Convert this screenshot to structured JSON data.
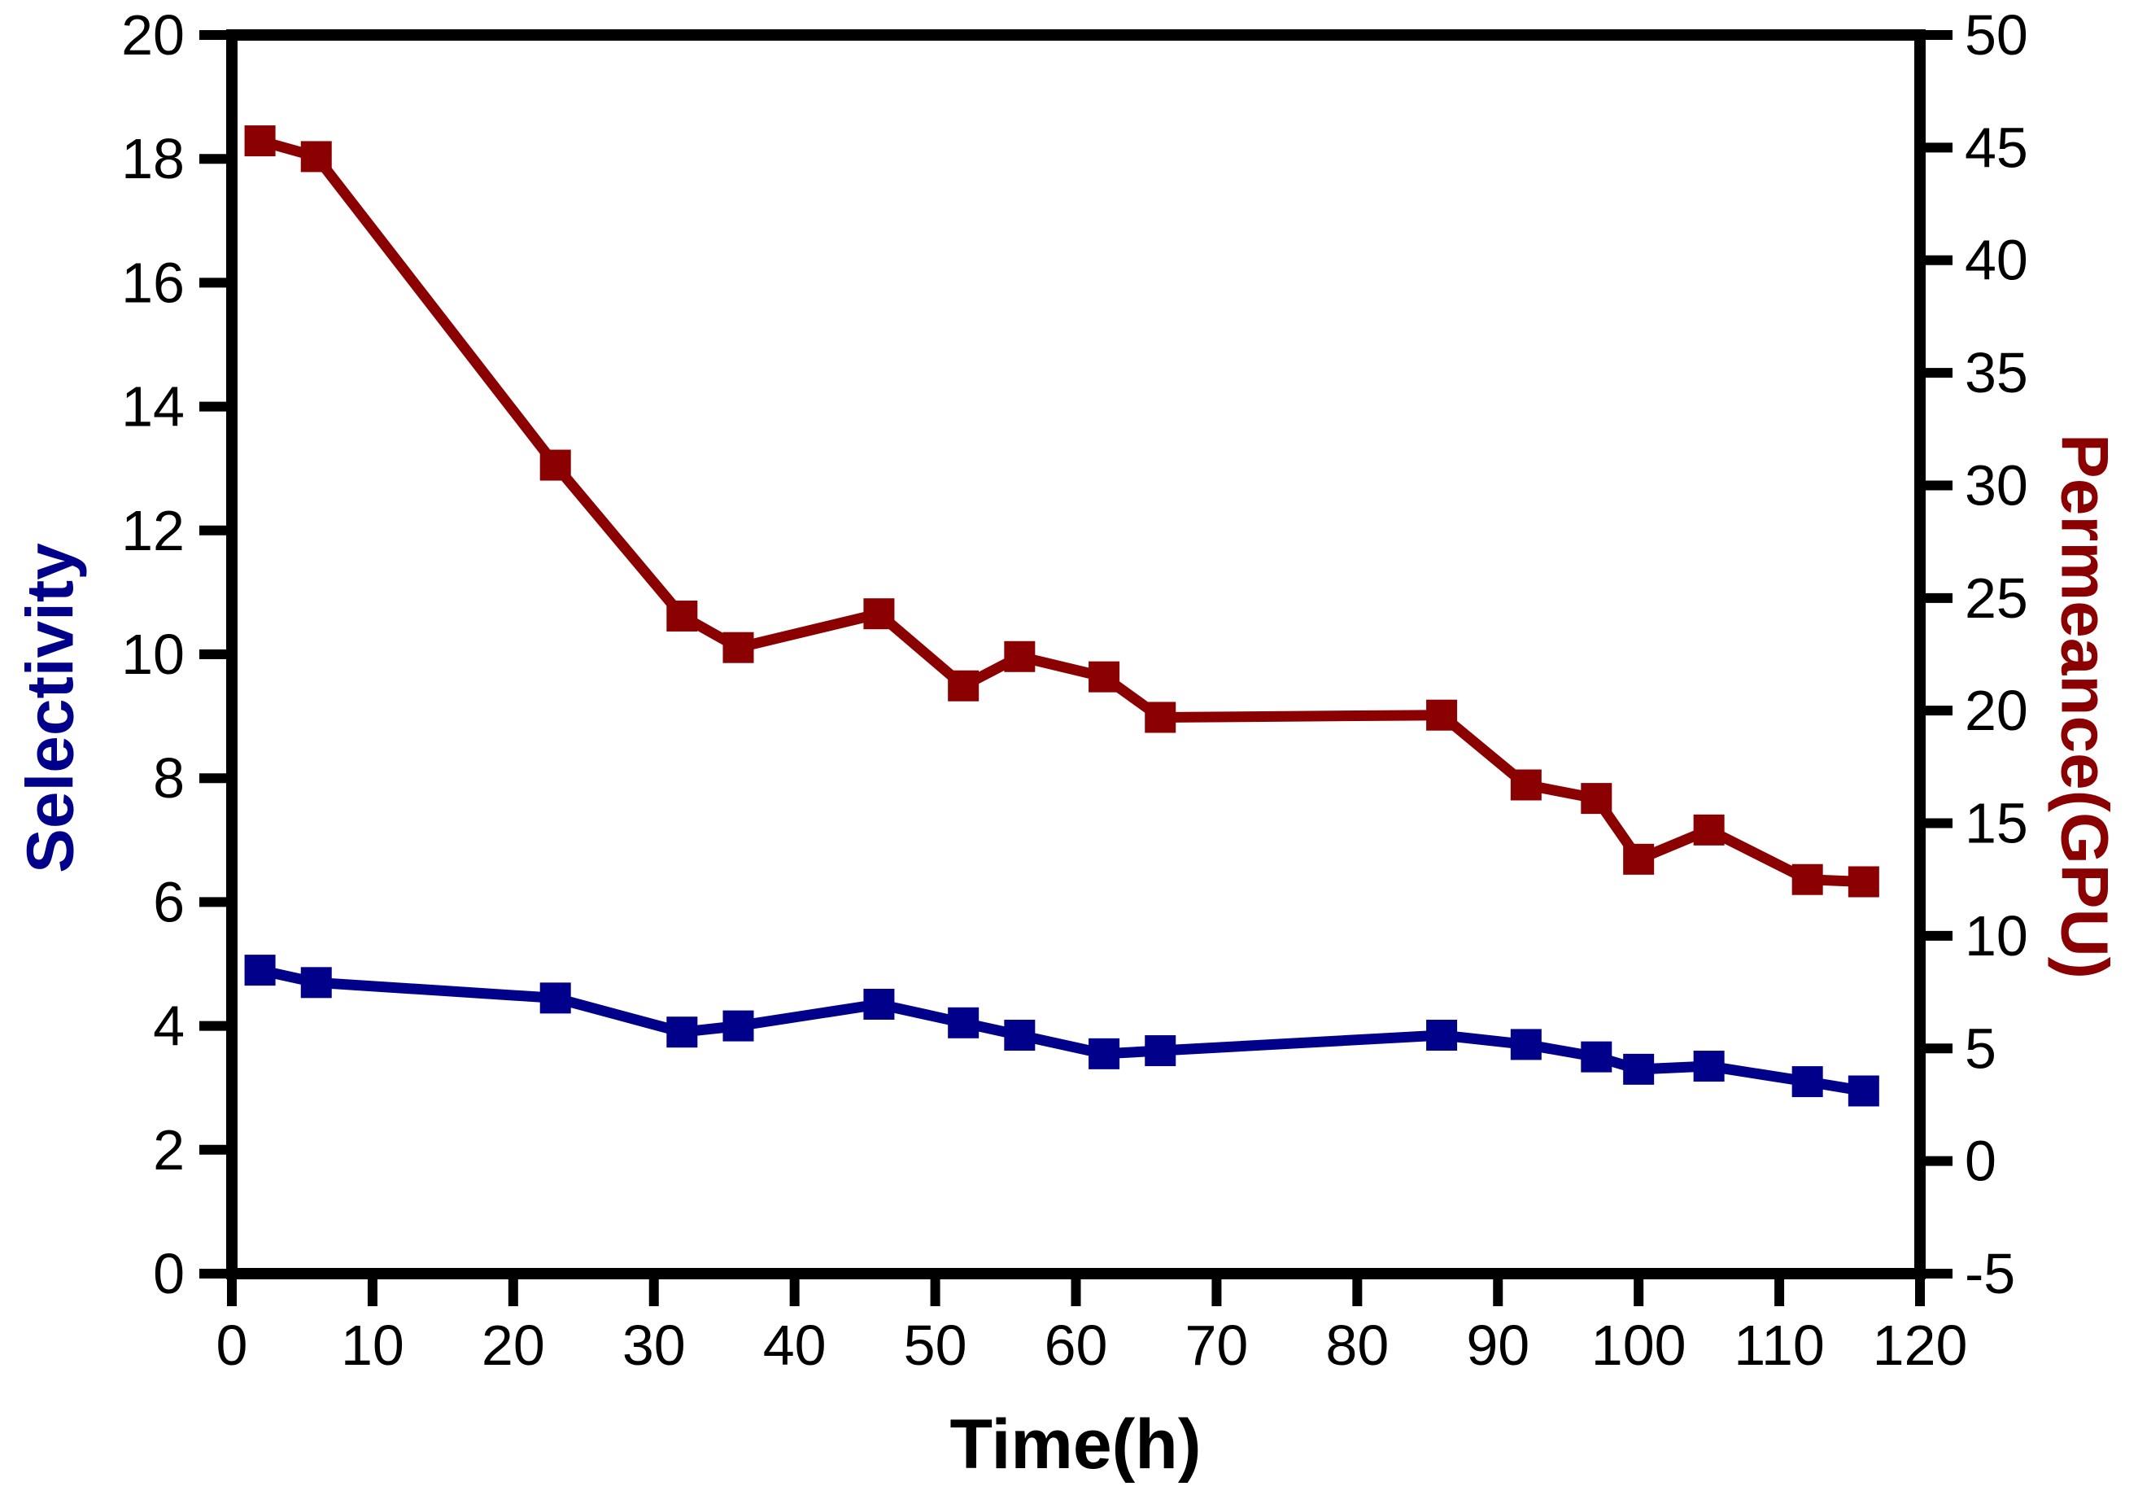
{
  "page": {
    "background": "#ffffff"
  },
  "chart_data": {
    "type": "line",
    "title": "",
    "xlabel": "Time(h)",
    "x": [
      2,
      6,
      23,
      32,
      36,
      46,
      52,
      56,
      62,
      66,
      86,
      92,
      97,
      100,
      105,
      112,
      116
    ],
    "xlim": [
      0,
      120
    ],
    "x_ticks": [
      0,
      10,
      20,
      30,
      40,
      50,
      60,
      70,
      80,
      90,
      100,
      110,
      120
    ],
    "grid": false,
    "legend": "none",
    "frame_color": "#000000",
    "tick_label_color": "#000000",
    "axes": {
      "left": {
        "label": "Selectivity",
        "color": "#00008B",
        "lim": [
          0,
          20
        ],
        "ticks": [
          0,
          2,
          4,
          6,
          8,
          10,
          12,
          14,
          16,
          18,
          20
        ]
      },
      "right": {
        "label": "Permeance(GPU)",
        "color": "#8B0000",
        "lim": [
          -5,
          50
        ],
        "ticks": [
          -5,
          0,
          5,
          10,
          15,
          20,
          25,
          30,
          35,
          40,
          45,
          50
        ]
      }
    },
    "series": [
      {
        "id": "selectivity",
        "name": "Selectivity",
        "axis": "left",
        "color": "#00008B",
        "marker": "square",
        "values": [
          4.9,
          4.7,
          4.45,
          3.9,
          4.0,
          4.35,
          4.05,
          3.85,
          3.55,
          3.6,
          3.85,
          3.7,
          3.5,
          3.3,
          3.35,
          3.1,
          2.95
        ]
      },
      {
        "id": "permeance",
        "name": "Permeance(GPU)",
        "axis": "right",
        "color": "#8B0000",
        "marker": "square",
        "values": [
          45.3,
          44.6,
          30.9,
          24.2,
          22.8,
          24.3,
          21.1,
          22.4,
          21.5,
          19.7,
          19.8,
          16.7,
          16.1,
          13.4,
          14.7,
          12.5,
          12.4
        ]
      }
    ]
  }
}
